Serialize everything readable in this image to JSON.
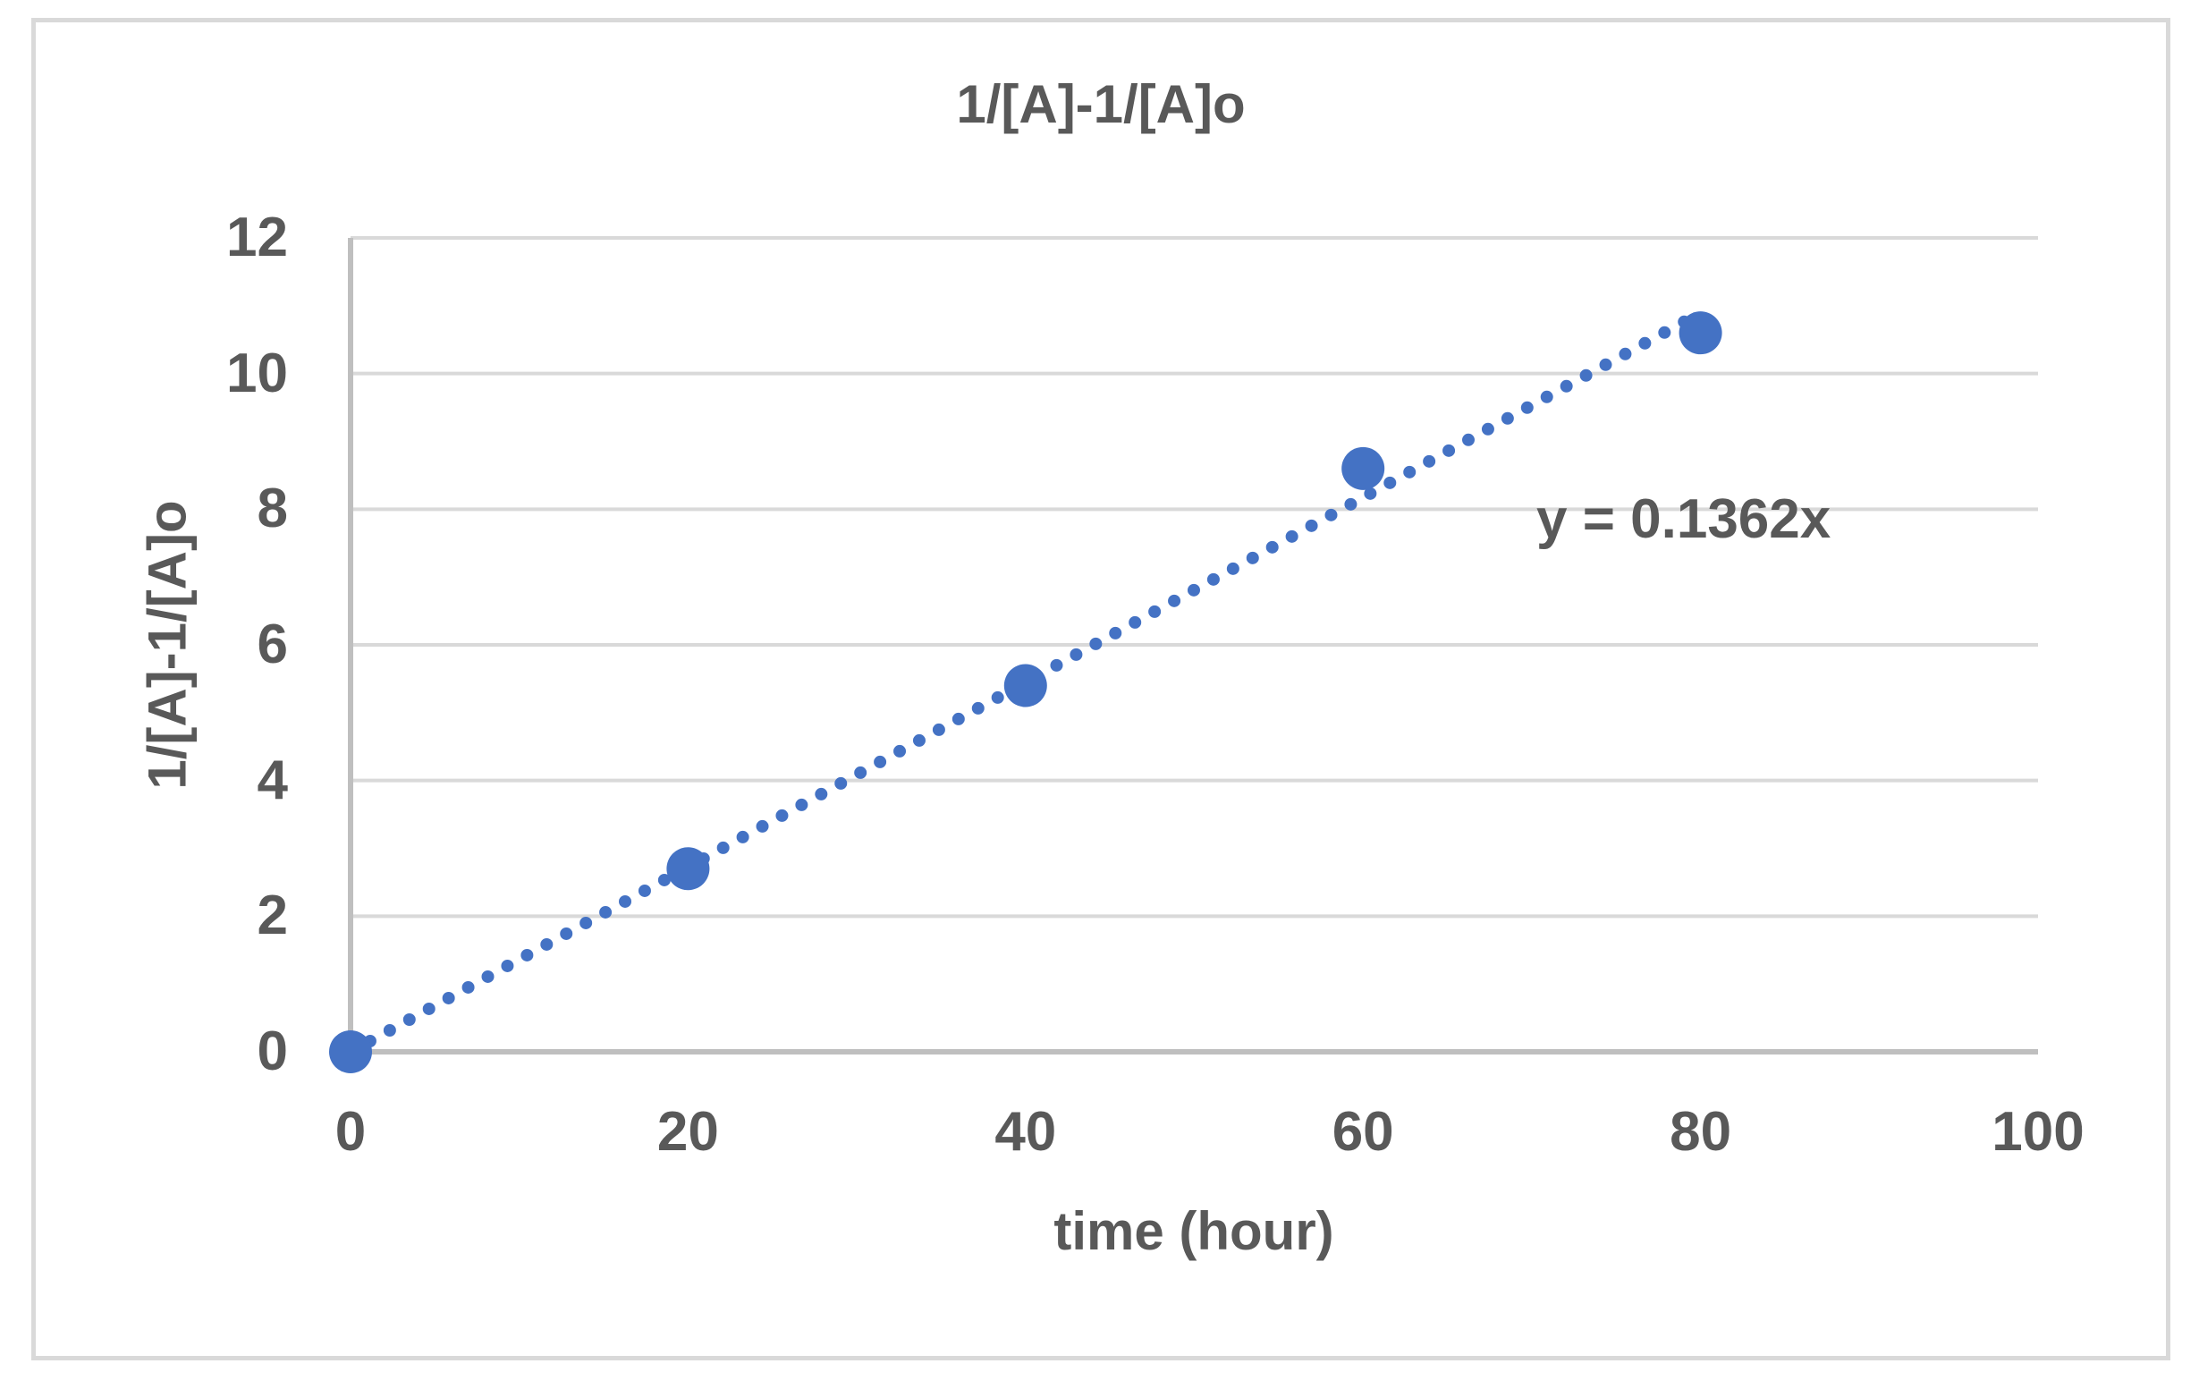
{
  "chart_data": {
    "type": "scatter",
    "title": "1/[A]-1/[A]o",
    "xlabel": "time (hour)",
    "ylabel": "1/[A]-1/[A]o",
    "x": [
      0,
      20,
      40,
      60,
      80
    ],
    "y": [
      0,
      2.7,
      5.4,
      8.6,
      10.6
    ],
    "xlim": [
      0,
      100
    ],
    "ylim": [
      0,
      12
    ],
    "x_ticks": [
      0,
      20,
      40,
      60,
      80,
      100
    ],
    "y_ticks": [
      0,
      2,
      4,
      6,
      8,
      10,
      12
    ],
    "grid": "horizontal-only",
    "legend": "none",
    "trendline": {
      "label": "y = 0.1362x",
      "slope": 0.1362,
      "intercept": 0,
      "x_range": [
        0,
        80
      ],
      "style": "dotted"
    },
    "colors": {
      "marker": "#4472c4",
      "trendline": "#4472c4",
      "text": "#595959",
      "gridline": "#d9d9d9",
      "axis_line": "#bfbfbf",
      "chart_border": "#d9d9d9",
      "background": "#ffffff"
    }
  }
}
